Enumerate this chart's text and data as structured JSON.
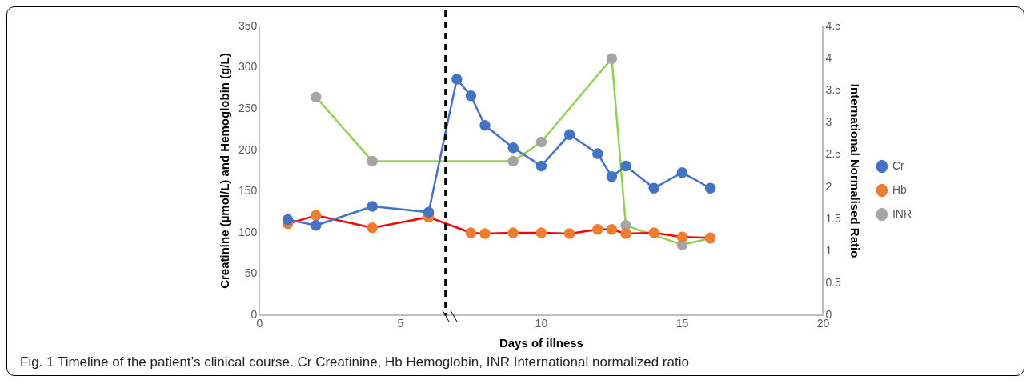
{
  "chart_data": {
    "type": "line",
    "xlabel": "Days of illness",
    "ylabel": "Creatinine (µmol/L) and Hemoglobin (g/L)",
    "y2label": "International Normalised Ratio",
    "xlim": [
      0,
      20
    ],
    "xticks": [
      0,
      5,
      10,
      15,
      20
    ],
    "ylim": [
      0,
      350
    ],
    "yticks": [
      0,
      50,
      100,
      150,
      200,
      250,
      300,
      350
    ],
    "y2lim": [
      0,
      4.5
    ],
    "y2ticks": [
      0,
      0.5,
      1,
      1.5,
      2,
      2.5,
      3,
      3.5,
      4,
      4.5
    ],
    "grid": false,
    "legend": "right",
    "marker": "circle",
    "ref_lines": [
      {
        "axis": "x",
        "value": 6.6,
        "color": "#000000",
        "line_style": "dashed"
      }
    ],
    "annotations": [
      "Fig. 1 Timeline of the patient’s clinical course. Cr Creatinine, Hb Hemoglobin, INR International normalized ratio"
    ],
    "series": [
      {
        "name": "Cr",
        "color": "#4472c4",
        "x": [
          1,
          2,
          4,
          6,
          7,
          7.5,
          8,
          9,
          10,
          11,
          12,
          12.5,
          13,
          14,
          15,
          16
        ],
        "values": [
          116,
          109,
          132,
          125,
          286,
          266,
          230,
          203,
          181,
          219,
          196,
          168,
          181,
          154,
          173,
          154
        ]
      },
      {
        "name": "Hb",
        "color": "#ff0000",
        "colors": [
          "#ed7d31",
          "#ed7d31",
          "#ed7d31",
          "#ed7d31",
          "#ed7d31",
          "#ed7d31",
          "#ed7d31",
          "#ed7d31",
          "#ed7d31",
          "#ed7d31",
          "#ed7d31",
          "#ed7d31",
          "#ed7d31",
          "#ed7d31",
          "#ed7d31"
        ],
        "x": [
          1,
          2,
          4,
          6,
          7.5,
          8,
          9,
          10,
          11,
          12,
          12.5,
          13,
          14,
          15,
          16
        ],
        "values": [
          111,
          121,
          106,
          119,
          100,
          99,
          100,
          100,
          99,
          104,
          104,
          99,
          100,
          95,
          94
        ]
      },
      {
        "name": "INR",
        "color": "#92d050",
        "colors": [
          "#a5a5a5",
          "#a5a5a5",
          "#a5a5a5",
          "#a5a5a5",
          "#a5a5a5",
          "#a5a5a5",
          "#a5a5a5",
          "#a5a5a5"
        ],
        "axis": "y2",
        "x": [
          2,
          4,
          9,
          10,
          12.5,
          13,
          15,
          16
        ],
        "values": [
          3.4,
          2.4,
          2.4,
          2.7,
          4.0,
          1.4,
          1.1,
          1.2
        ]
      }
    ]
  }
}
